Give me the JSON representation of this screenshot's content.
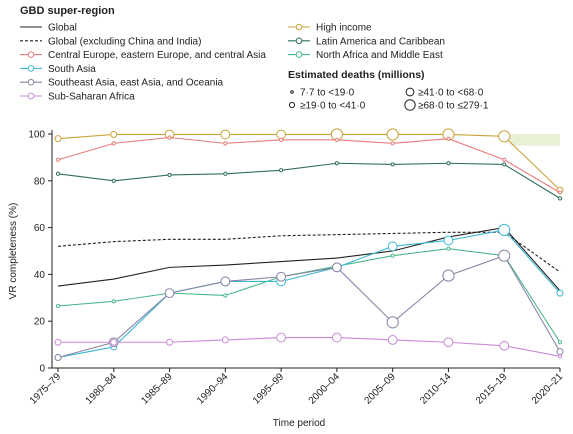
{
  "chart_data": {
    "type": "line",
    "xlabel": "Time period",
    "ylabel": "VR completeness (%)",
    "ylim": [
      0,
      100
    ],
    "yticks": [
      0,
      20,
      40,
      60,
      80,
      100
    ],
    "grid": false,
    "legend_position": "top",
    "categories": [
      "1975–79",
      "1980–84",
      "1985–89",
      "1990–94",
      "1995–99",
      "2000–04",
      "2005–09",
      "2010–14",
      "2015–19",
      "2020–21"
    ],
    "legend_title": "GBD super-region",
    "size_legend_title": "Estimated deaths (millions)",
    "size_bins": [
      {
        "label": "7·7 to <19·0",
        "r": 1.2
      },
      {
        "label": "≥19·0 to <41·0",
        "r": 2.5
      },
      {
        "label": "≥41·0 to <68·0",
        "r": 3.8
      },
      {
        "label": "≥68·0 to ≤279·1",
        "r": 5.0
      }
    ],
    "highlight_band": [
      95,
      100
    ],
    "series": [
      {
        "name": "Global",
        "color": "#222222",
        "dashed": false,
        "markers": false,
        "values": [
          35,
          38,
          43,
          44,
          45.5,
          47,
          50,
          56,
          60,
          33
        ]
      },
      {
        "name": "Global (excluding China and India)",
        "color": "#222222",
        "dashed": true,
        "markers": false,
        "values": [
          52,
          54,
          55,
          55,
          56.5,
          57,
          57.5,
          58,
          58,
          41
        ]
      },
      {
        "name": "High income",
        "color": "#c9a23a",
        "dashed": false,
        "markers": true,
        "values": [
          98,
          99.8,
          99.8,
          99.8,
          99.8,
          99.8,
          99.8,
          99.8,
          99,
          76
        ],
        "sizes": [
          2,
          2,
          3,
          3,
          3,
          4,
          4,
          4,
          4,
          2
        ]
      },
      {
        "name": "Central Europe, eastern Europe, and central Asia",
        "color": "#e87b7b",
        "dashed": false,
        "markers": true,
        "values": [
          89,
          96,
          98.5,
          96,
          97.5,
          97.5,
          96,
          98,
          89,
          75
        ],
        "sizes": [
          1,
          1,
          1,
          1,
          1,
          1,
          1,
          1,
          1,
          1
        ]
      },
      {
        "name": "Latin America and Caribbean",
        "color": "#2f6e5c",
        "dashed": false,
        "markers": true,
        "values": [
          83,
          80,
          82.5,
          83,
          84.5,
          87.5,
          87,
          87.5,
          87,
          72.5
        ],
        "sizes": [
          1,
          1,
          1,
          1,
          1,
          1,
          1,
          1,
          1,
          1
        ]
      },
      {
        "name": "North Africa and Middle East",
        "color": "#4ab78a",
        "dashed": false,
        "markers": true,
        "values": [
          26.5,
          28.5,
          32,
          31,
          39,
          43.5,
          48,
          51,
          48,
          11
        ],
        "sizes": [
          1,
          1,
          1,
          1,
          1,
          1,
          1,
          1,
          1,
          1
        ]
      },
      {
        "name": "South Asia",
        "color": "#3fb8d4",
        "dashed": false,
        "markers": true,
        "values": [
          4.5,
          9,
          32,
          37,
          37,
          43,
          52,
          54.5,
          59,
          32
        ],
        "sizes": [
          2,
          2,
          2,
          3,
          3,
          3,
          3,
          3,
          4,
          2
        ]
      },
      {
        "name": "Southeast Asia, east Asia, and Oceania",
        "color": "#8a84a8",
        "dashed": false,
        "markers": true,
        "values": [
          4.5,
          11,
          32,
          37,
          39,
          43,
          19.5,
          39.5,
          48,
          7
        ],
        "sizes": [
          2,
          3,
          3,
          3,
          3,
          3,
          4,
          4,
          4,
          2
        ]
      },
      {
        "name": "Sub-Saharan Africa",
        "color": "#c98ad6",
        "dashed": false,
        "markers": true,
        "values": [
          11,
          11,
          11,
          12,
          13,
          13,
          12,
          11,
          9.5,
          5
        ],
        "sizes": [
          2,
          2,
          2,
          2,
          3,
          3,
          3,
          3,
          3,
          1
        ]
      }
    ],
    "legend_order_left": [
      0,
      1,
      3,
      6,
      7,
      8
    ],
    "legend_order_right": [
      2,
      4,
      5
    ]
  }
}
